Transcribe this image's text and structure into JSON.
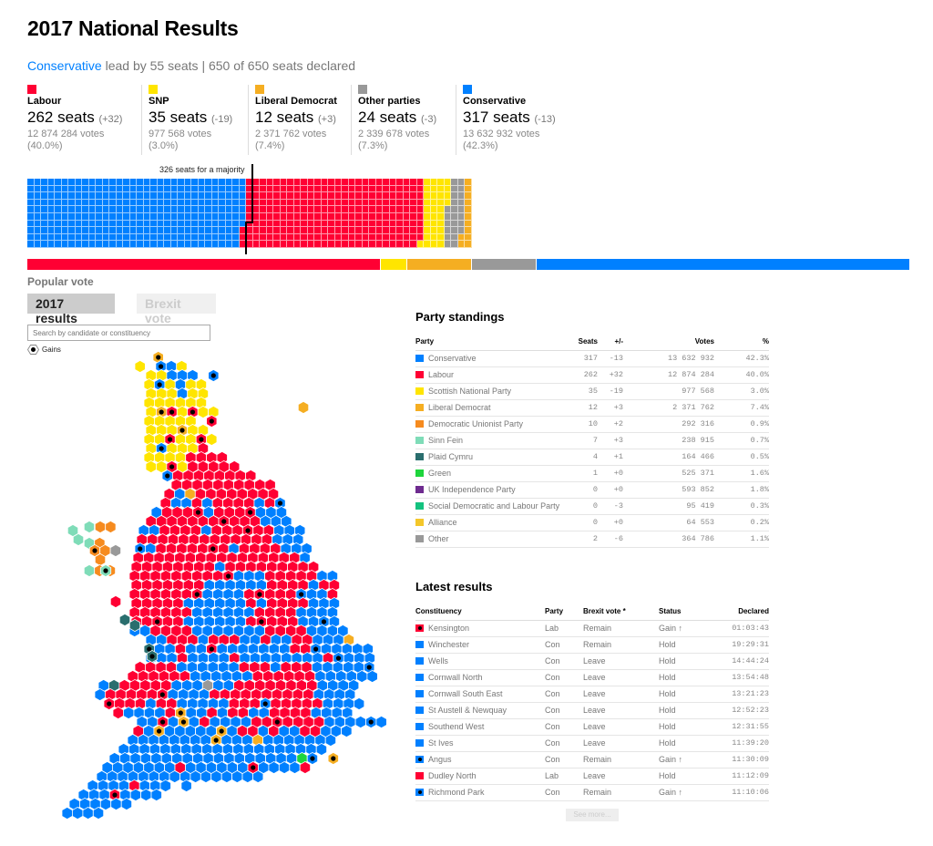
{
  "header": {
    "title": "2017 National Results",
    "lead_party": "Conservative",
    "lead_text": " lead by 55 seats | 650 of 650 seats declared"
  },
  "summary": [
    {
      "name": "Labour",
      "color": "#ff0033",
      "seats": "262 seats",
      "change": "(+32)",
      "votes": "12 874 284 votes",
      "pct": "(40.0%)"
    },
    {
      "name": "SNP",
      "color": "#ffe500",
      "seats": "35 seats",
      "change": "(-19)",
      "votes": "977 568 votes",
      "pct": "(3.0%)"
    },
    {
      "name": "Liberal Democrat",
      "color": "#f5ae22",
      "seats": "12 seats",
      "change": "(+3)",
      "votes": "2 371 762 votes",
      "pct": "(7.4%)"
    },
    {
      "name": "Other parties",
      "color": "#999999",
      "seats": "24 seats",
      "change": "(-3)",
      "votes": "2 339 678 votes",
      "pct": "(7.3%)"
    },
    {
      "name": "Conservative",
      "color": "#0080ff",
      "seats": "317 seats",
      "change": "(-13)",
      "votes": "13 632 932 votes",
      "pct": "(42.3%)"
    }
  ],
  "waffle": {
    "majority_label": "326 seats for a majority",
    "order": [
      {
        "party": "Conservative",
        "seats": 317,
        "color": "#0080ff"
      },
      {
        "party": "Labour",
        "seats": 262,
        "color": "#ff0033"
      },
      {
        "party": "SNP",
        "seats": 35,
        "color": "#ffe500"
      },
      {
        "party": "Other parties",
        "seats": 24,
        "color": "#999999"
      },
      {
        "party": "Liberal Democrat",
        "seats": 12,
        "color": "#f5ae22"
      }
    ]
  },
  "popular_vote_bar": [
    {
      "party": "Labour",
      "pct": 40.0,
      "color": "#ff0033"
    },
    {
      "party": "SNP",
      "pct": 3.0,
      "color": "#ffe500"
    },
    {
      "party": "Liberal Democrat",
      "pct": 7.4,
      "color": "#f5ae22"
    },
    {
      "party": "Other parties",
      "pct": 7.3,
      "color": "#999999"
    },
    {
      "party": "Conservative",
      "pct": 42.3,
      "color": "#0080ff"
    }
  ],
  "controls": {
    "popular_vote_label": "Popular vote",
    "toggle_active": "2017 results",
    "toggle_inactive": "Brexit vote",
    "search_placeholder": "Search by candidate or constituency",
    "gains_legend": "Gains"
  },
  "party_standings": {
    "title": "Party standings",
    "columns": [
      "Party",
      "Seats",
      "+/-",
      "Votes",
      "%"
    ],
    "rows": [
      {
        "party": "Conservative",
        "color": "#0080ff",
        "seats": "317",
        "change": "-13",
        "votes": "13 632 932",
        "pct": "42.3%"
      },
      {
        "party": "Labour",
        "color": "#ff0033",
        "seats": "262",
        "change": "+32",
        "votes": "12 874 284",
        "pct": "40.0%"
      },
      {
        "party": "Scottish National Party",
        "color": "#ffe500",
        "seats": "35",
        "change": "-19",
        "votes": "977 568",
        "pct": "3.0%"
      },
      {
        "party": "Liberal Democrat",
        "color": "#f5ae22",
        "seats": "12",
        "change": "+3",
        "votes": "2 371 762",
        "pct": "7.4%"
      },
      {
        "party": "Democratic Unionist Party",
        "color": "#f68b1f",
        "seats": "10",
        "change": "+2",
        "votes": "292 316",
        "pct": "0.9%"
      },
      {
        "party": "Sinn Fein",
        "color": "#7fdcb8",
        "seats": "7",
        "change": "+3",
        "votes": "238 915",
        "pct": "0.7%"
      },
      {
        "party": "Plaid Cymru",
        "color": "#2a6e6e",
        "seats": "4",
        "change": "+1",
        "votes": "164 466",
        "pct": "0.5%"
      },
      {
        "party": "Green",
        "color": "#1ed53c",
        "seats": "1",
        "change": "+0",
        "votes": "525 371",
        "pct": "1.6%"
      },
      {
        "party": "UK Independence Party",
        "color": "#6e2b8f",
        "seats": "0",
        "change": "+0",
        "votes": "593 852",
        "pct": "1.8%"
      },
      {
        "party": "Social Democratic and Labour Party",
        "color": "#14c27f",
        "seats": "0",
        "change": "-3",
        "votes": "95 419",
        "pct": "0.3%"
      },
      {
        "party": "Alliance",
        "color": "#f4c72a",
        "seats": "0",
        "change": "+0",
        "votes": "64 553",
        "pct": "0.2%"
      },
      {
        "party": "Other",
        "color": "#999999",
        "seats": "2",
        "change": "-6",
        "votes": "364 786",
        "pct": "1.1%"
      }
    ]
  },
  "latest_results": {
    "title": "Latest results",
    "columns": [
      "Constituency",
      "Party",
      "Brexit vote *",
      "Status",
      "Declared"
    ],
    "rows": [
      {
        "constituency": "Kensington",
        "color": "#ff0033",
        "gain": true,
        "party": "Lab",
        "brexit": "Remain",
        "status": "Gain ↑",
        "declared": "01:03:43"
      },
      {
        "constituency": "Winchester",
        "color": "#0080ff",
        "gain": false,
        "party": "Con",
        "brexit": "Remain",
        "status": "Hold",
        "declared": "19:29:31"
      },
      {
        "constituency": "Wells",
        "color": "#0080ff",
        "gain": false,
        "party": "Con",
        "brexit": "Leave",
        "status": "Hold",
        "declared": "14:44:24"
      },
      {
        "constituency": "Cornwall North",
        "color": "#0080ff",
        "gain": false,
        "party": "Con",
        "brexit": "Leave",
        "status": "Hold",
        "declared": "13:54:48"
      },
      {
        "constituency": "Cornwall South East",
        "color": "#0080ff",
        "gain": false,
        "party": "Con",
        "brexit": "Leave",
        "status": "Hold",
        "declared": "13:21:23"
      },
      {
        "constituency": "St Austell & Newquay",
        "color": "#0080ff",
        "gain": false,
        "party": "Con",
        "brexit": "Leave",
        "status": "Hold",
        "declared": "12:52:23"
      },
      {
        "constituency": "Southend West",
        "color": "#0080ff",
        "gain": false,
        "party": "Con",
        "brexit": "Leave",
        "status": "Hold",
        "declared": "12:31:55"
      },
      {
        "constituency": "St Ives",
        "color": "#0080ff",
        "gain": false,
        "party": "Con",
        "brexit": "Leave",
        "status": "Hold",
        "declared": "11:39:20"
      },
      {
        "constituency": "Angus",
        "color": "#0080ff",
        "gain": true,
        "party": "Con",
        "brexit": "Remain",
        "status": "Gain ↑",
        "declared": "11:30:09"
      },
      {
        "constituency": "Dudley North",
        "color": "#ff0033",
        "gain": false,
        "party": "Lab",
        "brexit": "Leave",
        "status": "Hold",
        "declared": "11:12:09"
      },
      {
        "constituency": "Richmond Park",
        "color": "#0080ff",
        "gain": true,
        "party": "Con",
        "brexit": "Remain",
        "status": "Gain ↑",
        "declared": "11:10:06"
      }
    ],
    "see_more": "See more..."
  },
  "map": {
    "colors": {
      "C": "#0080ff",
      "L": "#ff0033",
      "S": "#ffe500",
      "D": "#f5ae22",
      "U": "#f68b1f",
      "F": "#7fdcb8",
      "P": "#2a6e6e",
      "G": "#1ed53c",
      "O": "#999999"
    }
  }
}
